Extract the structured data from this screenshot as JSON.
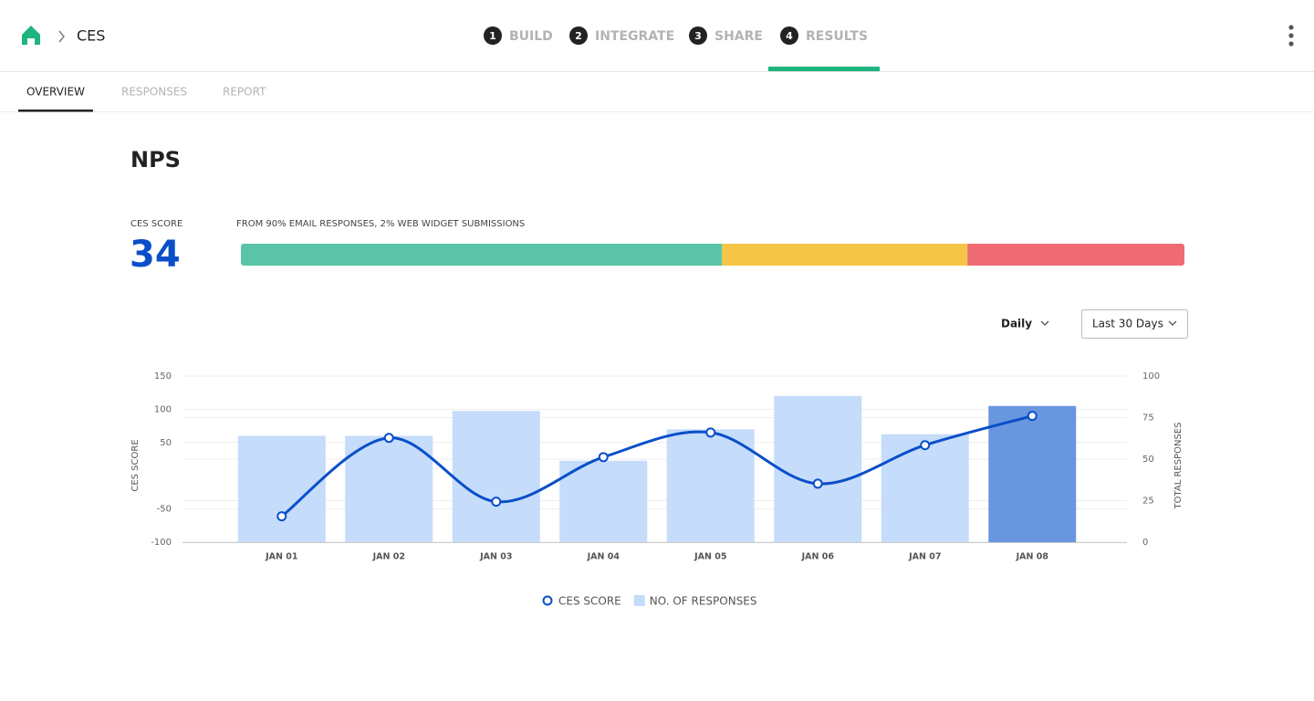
{
  "header": {
    "breadcrumb": "CES",
    "steps": [
      {
        "number": 1,
        "label": "BUILD"
      },
      {
        "number": 2,
        "label": "INTEGRATE"
      },
      {
        "number": 3,
        "label": "SHARE"
      },
      {
        "number": 4,
        "label": "RESULTS"
      }
    ],
    "active_step": 4
  },
  "tabs": {
    "items": [
      "OVERVIEW",
      "RESPONSES",
      "REPORT"
    ],
    "active": "OVERVIEW"
  },
  "section_title": "NPS",
  "score": {
    "label": "CES SCORE",
    "value": 34,
    "source": "FROM 90% EMAIL RESPONSES, 2% WEB WIDGET SUBMISSIONS",
    "segments": [
      {
        "color": "#5bc4a8",
        "value": 51
      },
      {
        "color": "#f5c646",
        "value": 26
      },
      {
        "color": "#ef6b73",
        "value": 23
      }
    ]
  },
  "controls": {
    "interval": "Daily",
    "range": "Last 30 Days"
  },
  "chart_data": {
    "type": "combo",
    "categories": [
      "JAN 01",
      "JAN 02",
      "JAN 03",
      "JAN 04",
      "JAN 05",
      "JAN 06",
      "JAN 07",
      "JAN 08"
    ],
    "series": [
      {
        "name": "CES SCORE",
        "type": "line",
        "color": "#0a4fc9",
        "values": [
          -61,
          57,
          -39,
          28,
          65,
          -12,
          46,
          90
        ]
      },
      {
        "name": "NO. OF RESPONSES",
        "type": "bar",
        "axis": "y2",
        "color": "#c5dcfb",
        "colors": [
          "#c5dcfb",
          "#c5dcfb",
          "#c5dcfb",
          "#c5dcfb",
          "#c5dcfb",
          "#c5dcfb",
          "#c5dcfb",
          "#6897e0"
        ],
        "values": [
          64,
          64,
          79,
          49,
          68,
          88,
          65,
          82
        ]
      }
    ],
    "ylabel": "CES SCORE",
    "y2label": "TOTAL RESPONSES",
    "ylim": [
      -100,
      150
    ],
    "yticks": [
      150,
      100,
      50,
      -50,
      -100
    ],
    "y2lim": [
      0,
      100
    ],
    "y2ticks": [
      0,
      25,
      50,
      75,
      100
    ],
    "grid": true
  }
}
